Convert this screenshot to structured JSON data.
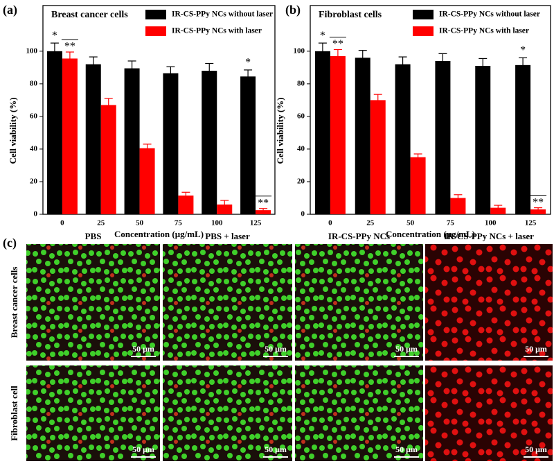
{
  "chart_data": [
    {
      "type": "bar",
      "panel_label": "(a)",
      "title": "Breast cancer cells",
      "x_label": "Concentration (μg/mL)",
      "y_label": "Cell viability (%)",
      "categories": [
        "0",
        "25",
        "50",
        "75",
        "100",
        "125"
      ],
      "series": [
        {
          "name": "IR-CS-PPy NCs without laser",
          "color": "#000000",
          "values": [
            100,
            92,
            89.5,
            86.5,
            88,
            84.5
          ],
          "errors": [
            5,
            4.5,
            4.5,
            4,
            4.5,
            4
          ]
        },
        {
          "name": "IR-CS-PPy NCs with laser",
          "color": "#ff0000",
          "values": [
            95.5,
            67,
            40.5,
            11.5,
            6,
            2.5
          ],
          "errors": [
            4,
            4,
            2.5,
            2,
            2.5,
            1
          ]
        }
      ],
      "ylim": [
        0,
        128
      ],
      "yticks": [
        0,
        20,
        40,
        60,
        80,
        100
      ],
      "legend": "upper right",
      "annotations": [
        {
          "text": "*",
          "category": "0",
          "series": "IR-CS-PPy NCs without laser"
        },
        {
          "text": "**",
          "category": "0",
          "series": "IR-CS-PPy NCs with laser"
        },
        {
          "text": "*",
          "category": "125",
          "series": "IR-CS-PPy NCs without laser"
        },
        {
          "text": "**",
          "category": "125",
          "series": "IR-CS-PPy NCs with laser"
        }
      ]
    },
    {
      "type": "bar",
      "panel_label": "(b)",
      "title": "Fibroblast cells",
      "x_label": "Concentration (μg/mL)",
      "y_label": "Cell viability (%)",
      "categories": [
        "0",
        "25",
        "50",
        "75",
        "100",
        "125"
      ],
      "series": [
        {
          "name": "IR-CS-PPy NCs without laser",
          "color": "#000000",
          "values": [
            100,
            96,
            92,
            94,
            91,
            91.5
          ],
          "errors": [
            5,
            4.5,
            4.5,
            4.5,
            4.5,
            4.5
          ]
        },
        {
          "name": "IR-CS-PPy NCs with laser",
          "color": "#ff0000",
          "values": [
            97,
            70,
            35,
            10,
            4,
            3
          ],
          "errors": [
            4,
            3.5,
            2,
            2,
            1.5,
            1
          ]
        }
      ],
      "ylim": [
        0,
        128
      ],
      "yticks": [
        0,
        20,
        40,
        60,
        80,
        100
      ],
      "legend": "upper right",
      "annotations": [
        {
          "text": "*",
          "category": "0",
          "series": "IR-CS-PPy NCs without laser"
        },
        {
          "text": "**",
          "category": "0",
          "series": "IR-CS-PPy NCs with laser"
        },
        {
          "text": "*",
          "category": "125",
          "series": "IR-CS-PPy NCs without laser"
        },
        {
          "text": "**",
          "category": "125",
          "series": "IR-CS-PPy NCs with laser"
        }
      ]
    }
  ],
  "image_panel": {
    "panel_label": "(c)",
    "columns": [
      "PBS",
      "PBS + laser",
      "IR-CS-PPy NCs",
      "IR-CS-PPy NCs + laser"
    ],
    "rows": [
      "Breast cancer cells",
      "Fibroblast cell"
    ],
    "scale_bar": "50 μm"
  }
}
